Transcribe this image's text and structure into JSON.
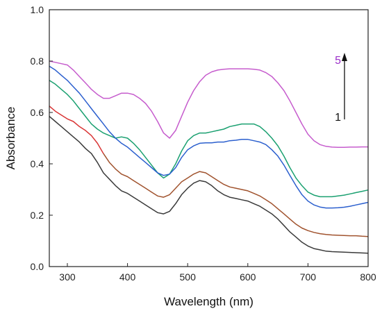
{
  "chart_data": {
    "type": "line",
    "title": "",
    "xlabel": "Wavelength (nm)",
    "ylabel": "Absorbance",
    "xlim": [
      270,
      800
    ],
    "ylim": [
      0.0,
      1.0
    ],
    "x_ticks": [
      300,
      400,
      500,
      600,
      700,
      800
    ],
    "x_tick_labels": [
      "300",
      "400",
      "500",
      "600",
      "700",
      "800"
    ],
    "y_ticks": [
      0.0,
      0.2,
      0.4,
      0.6,
      0.8,
      1.0
    ],
    "y_tick_labels": [
      "0.0",
      "0.2",
      "0.4",
      "0.6",
      "0.8",
      "1.0"
    ],
    "grid": false,
    "annotations": {
      "top_label": "5",
      "top_label_color": "#9b2fc9",
      "bottom_label": "1",
      "bottom_label_color": "#111111",
      "arrow": "upward arrow from 1 to 5"
    },
    "series": [
      {
        "color": "#3a3a3a",
        "x": [
          270,
          280,
          290,
          300,
          310,
          320,
          330,
          340,
          350,
          360,
          370,
          380,
          390,
          400,
          410,
          420,
          430,
          440,
          450,
          460,
          470,
          480,
          490,
          500,
          510,
          520,
          530,
          540,
          550,
          560,
          570,
          580,
          590,
          600,
          610,
          620,
          630,
          640,
          650,
          660,
          670,
          680,
          690,
          700,
          710,
          720,
          730,
          740,
          750,
          760,
          770,
          780,
          790,
          800
        ],
        "y": [
          0.585,
          0.565,
          0.545,
          0.525,
          0.505,
          0.485,
          0.46,
          0.44,
          0.405,
          0.365,
          0.34,
          0.315,
          0.295,
          0.285,
          0.27,
          0.255,
          0.24,
          0.225,
          0.21,
          0.205,
          0.215,
          0.245,
          0.28,
          0.305,
          0.325,
          0.335,
          0.33,
          0.315,
          0.295,
          0.28,
          0.27,
          0.265,
          0.26,
          0.255,
          0.245,
          0.235,
          0.22,
          0.205,
          0.185,
          0.16,
          0.135,
          0.115,
          0.095,
          0.08,
          0.07,
          0.065,
          0.06,
          0.058,
          0.057,
          0.056,
          0.055,
          0.054,
          0.053,
          0.052
        ]
      },
      {
        "color": "#d93535",
        "x": [
          270,
          280,
          290,
          300,
          310,
          320,
          330,
          340,
          350,
          360
        ],
        "y": [
          0.625,
          0.605,
          0.59,
          0.575,
          0.565,
          0.545,
          0.53,
          0.51,
          0.48,
          0.44
        ]
      },
      {
        "color": "#a0522d",
        "x": [
          360,
          370,
          380,
          390,
          400,
          410,
          420,
          430,
          440,
          450,
          460,
          470,
          480,
          490,
          500,
          510,
          520,
          530,
          540,
          550,
          560,
          570,
          580,
          590,
          600,
          610,
          620,
          630,
          640,
          650,
          660,
          670,
          680,
          690,
          700,
          710,
          720,
          730,
          740,
          750,
          760,
          770,
          780,
          790,
          800
        ],
        "y": [
          0.44,
          0.405,
          0.38,
          0.36,
          0.35,
          0.335,
          0.32,
          0.305,
          0.29,
          0.275,
          0.27,
          0.28,
          0.305,
          0.33,
          0.345,
          0.36,
          0.37,
          0.365,
          0.35,
          0.335,
          0.32,
          0.31,
          0.305,
          0.3,
          0.295,
          0.285,
          0.275,
          0.26,
          0.245,
          0.225,
          0.205,
          0.185,
          0.165,
          0.15,
          0.14,
          0.133,
          0.128,
          0.125,
          0.123,
          0.122,
          0.121,
          0.12,
          0.12,
          0.118,
          0.117
        ]
      },
      {
        "color": "#1aa070",
        "x": [
          270,
          280,
          290,
          300,
          310,
          320,
          330,
          340,
          350,
          360,
          370,
          380,
          390,
          400,
          410,
          420,
          430,
          440,
          450,
          460,
          470,
          480,
          490,
          500,
          510,
          520,
          530,
          540,
          550,
          560,
          570,
          580,
          590,
          600,
          610,
          620,
          630,
          640,
          650,
          660,
          670,
          680,
          690,
          700,
          710,
          720,
          730,
          740,
          750,
          760,
          770,
          780,
          790,
          800
        ],
        "y": [
          0.725,
          0.71,
          0.69,
          0.67,
          0.645,
          0.615,
          0.585,
          0.555,
          0.535,
          0.52,
          0.51,
          0.5,
          0.505,
          0.5,
          0.48,
          0.455,
          0.425,
          0.395,
          0.365,
          0.345,
          0.36,
          0.4,
          0.45,
          0.49,
          0.51,
          0.52,
          0.52,
          0.525,
          0.53,
          0.535,
          0.545,
          0.55,
          0.555,
          0.555,
          0.555,
          0.545,
          0.525,
          0.5,
          0.47,
          0.43,
          0.385,
          0.345,
          0.315,
          0.29,
          0.278,
          0.272,
          0.272,
          0.272,
          0.275,
          0.278,
          0.283,
          0.288,
          0.293,
          0.298
        ]
      },
      {
        "color": "#2b5fce",
        "x": [
          270,
          280,
          290,
          300,
          310,
          320,
          330,
          340,
          350,
          360,
          370,
          380,
          390,
          400,
          410,
          420,
          430,
          440,
          450,
          460,
          470,
          480,
          490,
          500,
          510,
          520,
          530,
          540,
          550,
          560,
          570,
          580,
          590,
          600,
          610,
          620,
          630,
          640,
          650,
          660,
          670,
          680,
          690,
          700,
          710,
          720,
          730,
          740,
          750,
          760,
          770,
          780,
          790,
          800
        ],
        "y": [
          0.78,
          0.765,
          0.745,
          0.725,
          0.7,
          0.675,
          0.645,
          0.615,
          0.585,
          0.555,
          0.525,
          0.5,
          0.48,
          0.465,
          0.445,
          0.425,
          0.405,
          0.385,
          0.365,
          0.355,
          0.36,
          0.385,
          0.425,
          0.455,
          0.47,
          0.48,
          0.482,
          0.482,
          0.485,
          0.485,
          0.49,
          0.492,
          0.495,
          0.495,
          0.49,
          0.485,
          0.475,
          0.455,
          0.43,
          0.395,
          0.355,
          0.315,
          0.28,
          0.255,
          0.24,
          0.232,
          0.228,
          0.228,
          0.229,
          0.231,
          0.235,
          0.24,
          0.245,
          0.25
        ]
      },
      {
        "color": "#c65ccd",
        "x": [
          270,
          280,
          290,
          300,
          310,
          320,
          330,
          340,
          350,
          360,
          370,
          380,
          390,
          400,
          410,
          420,
          430,
          440,
          450,
          460,
          470,
          480,
          490,
          500,
          510,
          520,
          530,
          540,
          550,
          560,
          570,
          580,
          590,
          600,
          610,
          620,
          630,
          640,
          650,
          660,
          670,
          680,
          690,
          700,
          710,
          720,
          730,
          740,
          750,
          760,
          770,
          780,
          790,
          800
        ],
        "y": [
          0.8,
          0.795,
          0.79,
          0.785,
          0.765,
          0.74,
          0.715,
          0.69,
          0.67,
          0.655,
          0.655,
          0.665,
          0.675,
          0.675,
          0.67,
          0.655,
          0.635,
          0.605,
          0.565,
          0.52,
          0.5,
          0.53,
          0.585,
          0.64,
          0.685,
          0.72,
          0.745,
          0.758,
          0.765,
          0.768,
          0.77,
          0.77,
          0.77,
          0.77,
          0.768,
          0.765,
          0.755,
          0.74,
          0.715,
          0.685,
          0.645,
          0.6,
          0.555,
          0.515,
          0.49,
          0.475,
          0.468,
          0.465,
          0.464,
          0.464,
          0.465,
          0.465,
          0.466,
          0.466
        ]
      }
    ]
  }
}
